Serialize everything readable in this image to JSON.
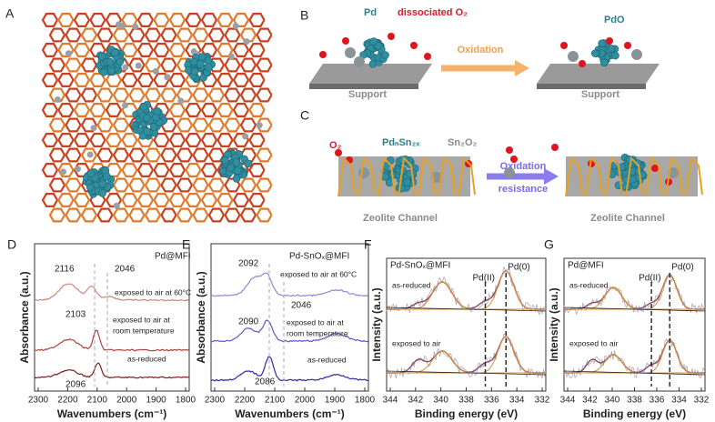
{
  "panels": {
    "A": {
      "letter": "A"
    },
    "B": {
      "letter": "B",
      "pd": "Pd",
      "o2": "dissociated O₂",
      "pdo": "PdO",
      "arrow": "Oxidation",
      "support_left": "Support",
      "support_right": "Support"
    },
    "C": {
      "letter": "C",
      "o2": "O₂",
      "alloy": "PdₙSn₂ₓ",
      "oxide": "Sn₂O₂",
      "arrow_1": "Oxidation",
      "arrow_2": "resistance",
      "channel_left": "Zeolite Channel",
      "channel_right": "Zeolite Channel"
    },
    "D": {
      "letter": "D",
      "sample": "Pd@MFI",
      "xlabel": "Wavenumbers (cm⁻¹)",
      "ylabel": "Absorbance (a.u.)",
      "xticks": [
        "2300",
        "2200",
        "2100",
        "2000",
        "1900",
        "1800"
      ],
      "annotations": [
        "2116",
        "2046",
        "exposed to air at 60°C",
        "2103",
        "exposed to air at",
        "room temperature",
        "as-reduced",
        "2096"
      ]
    },
    "E": {
      "letter": "E",
      "sample": "Pd-SnOₓ@MFI",
      "xlabel": "Wavenumbers (cm⁻¹)",
      "ylabel": "Absorbance (a.u.)",
      "xticks": [
        "2300",
        "2200",
        "2100",
        "2000",
        "1900",
        "1800"
      ],
      "annotations": [
        "2092",
        "exposed to air at 60°C",
        "2046",
        "2090",
        "exposed to air at",
        "room temperature",
        "as-reduced",
        "2086"
      ]
    },
    "F": {
      "letter": "F",
      "sample": "Pd-SnOₓ@MFI",
      "pd2": "Pd(II)",
      "pd0": "Pd(0)",
      "top": "as-reduced",
      "bottom": "exposed to air",
      "xlabel": "Binding energy (eV)",
      "ylabel": "Intensity (a.u.)",
      "xticks": [
        "344",
        "342",
        "340",
        "338",
        "336",
        "334",
        "332"
      ]
    },
    "G": {
      "letter": "G",
      "sample": "Pd@MFI",
      "pd2": "Pd(II)",
      "pd0": "Pd(0)",
      "top": "as-reduced",
      "bottom": "exposed to air",
      "xlabel": "Binding energy (eV)",
      "ylabel": "Intensity (a.u.)",
      "xticks": [
        "344",
        "342",
        "340",
        "338",
        "336",
        "334",
        "332"
      ]
    }
  }
}
